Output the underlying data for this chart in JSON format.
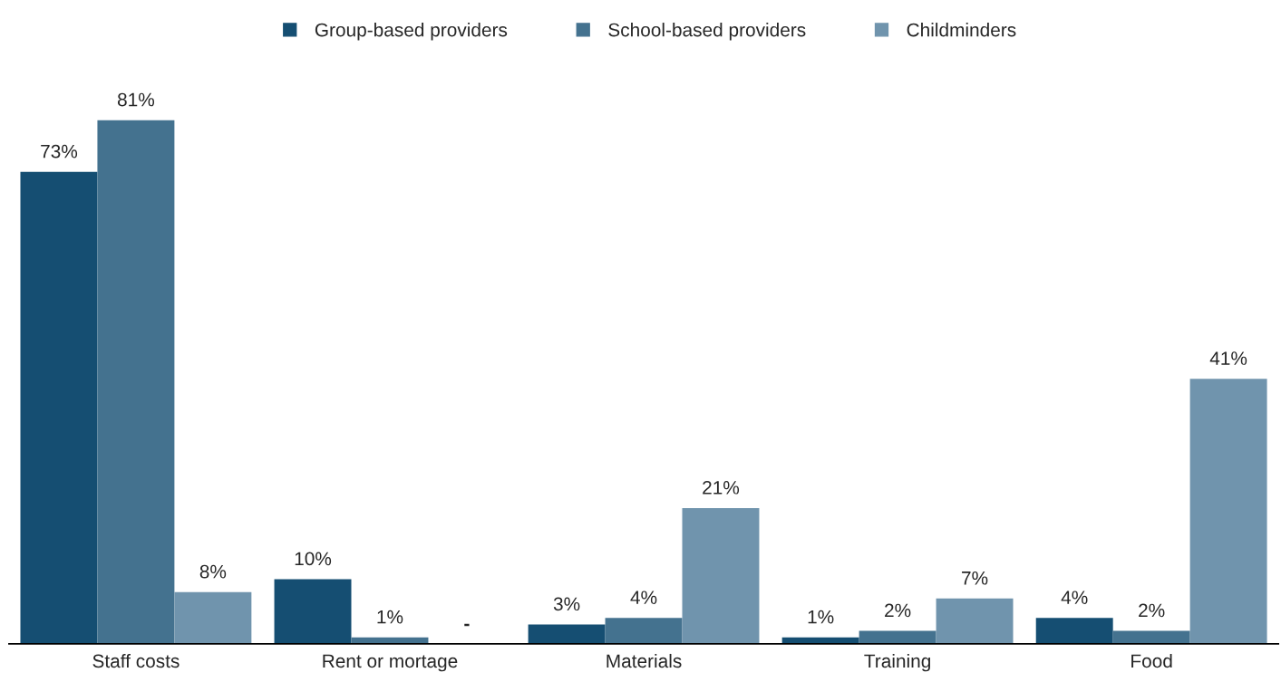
{
  "chart_data": {
    "type": "bar",
    "tick_labels": "x",
    "legend": "top",
    "marker": "square",
    "categories": [
      "Staff costs",
      "Rent or mortage",
      "Materials",
      "Training",
      "Food"
    ],
    "series": [
      {
        "name": "Group-based providers",
        "color": "#154e72",
        "values": [
          73,
          10,
          3,
          1,
          4
        ],
        "value_labels": [
          "73%",
          "10%",
          "3%",
          "1%",
          "4%"
        ]
      },
      {
        "name": "School-based providers",
        "color": "#44728f",
        "values": [
          81,
          1,
          4,
          2,
          2
        ],
        "value_labels": [
          "81%",
          "1%",
          "4%",
          "2%",
          "2%"
        ]
      },
      {
        "name": "Childminders",
        "color": "#7094ad",
        "values": [
          8,
          null,
          21,
          7,
          41
        ],
        "value_labels": [
          "8%",
          "-",
          "21%",
          "7%",
          "41%"
        ]
      }
    ]
  }
}
